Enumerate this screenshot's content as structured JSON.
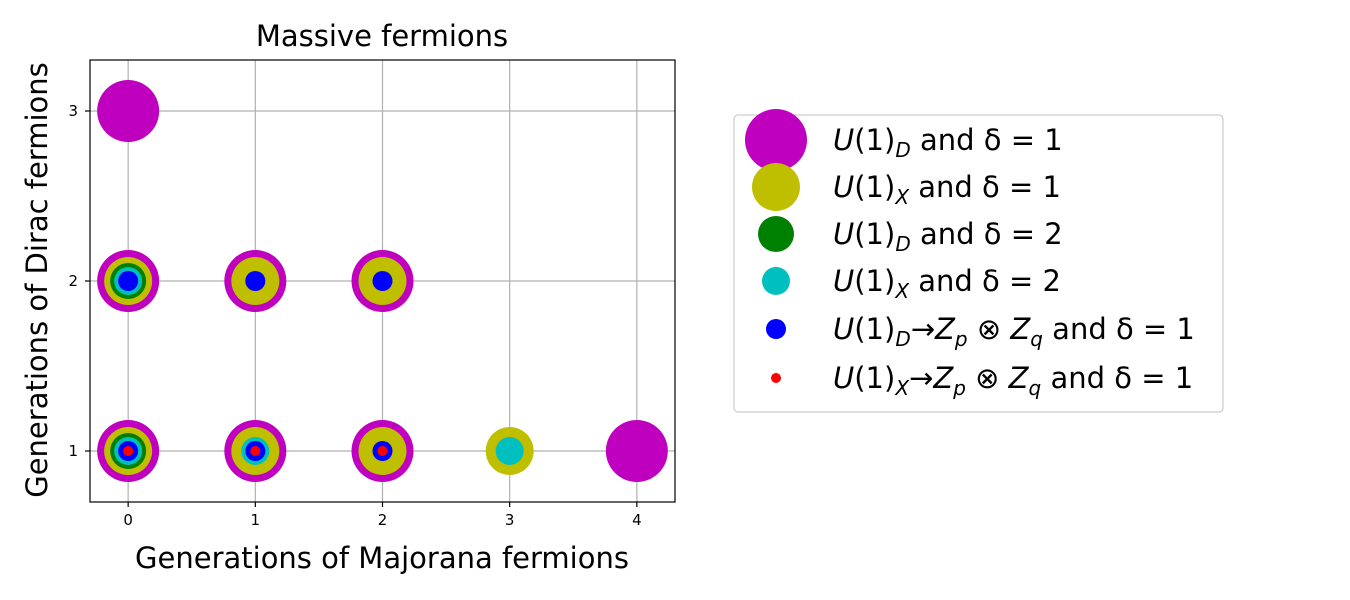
{
  "chart_data": {
    "type": "scatter",
    "title": "Massive fermions",
    "xlabel": "Generations of Majorana fermions",
    "ylabel": "Generations of Dirac fermions",
    "xlim": [
      -0.3,
      4.3
    ],
    "ylim": [
      0.7,
      3.3
    ],
    "xticks": [
      "0",
      "1",
      "2",
      "3",
      "4"
    ],
    "yticks": [
      "1",
      "2",
      "3"
    ],
    "grid": true,
    "legend_position": "right",
    "series": [
      {
        "key": "ud1",
        "color": "#bf00bf",
        "size_rank": 6,
        "legend": {
          "base": "U(1)",
          "sub": "D",
          "arrow": false,
          "delta": "1"
        },
        "points": [
          [
            0,
            3
          ],
          [
            0,
            2
          ],
          [
            1,
            2
          ],
          [
            2,
            2
          ],
          [
            0,
            1
          ],
          [
            1,
            1
          ],
          [
            2,
            1
          ],
          [
            4,
            1
          ]
        ]
      },
      {
        "key": "ux1",
        "color": "#bfbf00",
        "size_rank": 5,
        "legend": {
          "base": "U(1)",
          "sub": "X",
          "arrow": false,
          "delta": "1"
        },
        "points": [
          [
            0,
            2
          ],
          [
            1,
            2
          ],
          [
            2,
            2
          ],
          [
            0,
            1
          ],
          [
            1,
            1
          ],
          [
            2,
            1
          ],
          [
            3,
            1
          ]
        ]
      },
      {
        "key": "ud2",
        "color": "#008000",
        "size_rank": 4,
        "legend": {
          "base": "U(1)",
          "sub": "D",
          "arrow": false,
          "delta": "2"
        },
        "points": [
          [
            0,
            2
          ],
          [
            0,
            1
          ]
        ]
      },
      {
        "key": "ux2",
        "color": "#00bfbf",
        "size_rank": 3,
        "legend": {
          "base": "U(1)",
          "sub": "X",
          "arrow": false,
          "delta": "2"
        },
        "points": [
          [
            0,
            2
          ],
          [
            0,
            1
          ],
          [
            1,
            1
          ],
          [
            3,
            1
          ]
        ]
      },
      {
        "key": "udz",
        "color": "#0000ff",
        "size_rank": 2,
        "legend": {
          "base": "U(1)",
          "sub": "D",
          "arrow": true,
          "z1": "Z",
          "z1sub": "p",
          "z2": "Z",
          "z2sub": "q",
          "delta": "1"
        },
        "points": [
          [
            0,
            2
          ],
          [
            1,
            2
          ],
          [
            2,
            2
          ],
          [
            0,
            1
          ],
          [
            1,
            1
          ],
          [
            2,
            1
          ]
        ]
      },
      {
        "key": "uxz",
        "color": "#ff0000",
        "size_rank": 1,
        "legend": {
          "base": "U(1)",
          "sub": "X",
          "arrow": true,
          "z1": "Z",
          "z1sub": "p",
          "z2": "Z",
          "z2sub": "q",
          "delta": "1"
        },
        "points": [
          [
            0,
            1
          ],
          [
            1,
            1
          ],
          [
            2,
            1
          ]
        ]
      }
    ],
    "legend_connector": "and",
    "legend_delta_symbol": "δ"
  }
}
